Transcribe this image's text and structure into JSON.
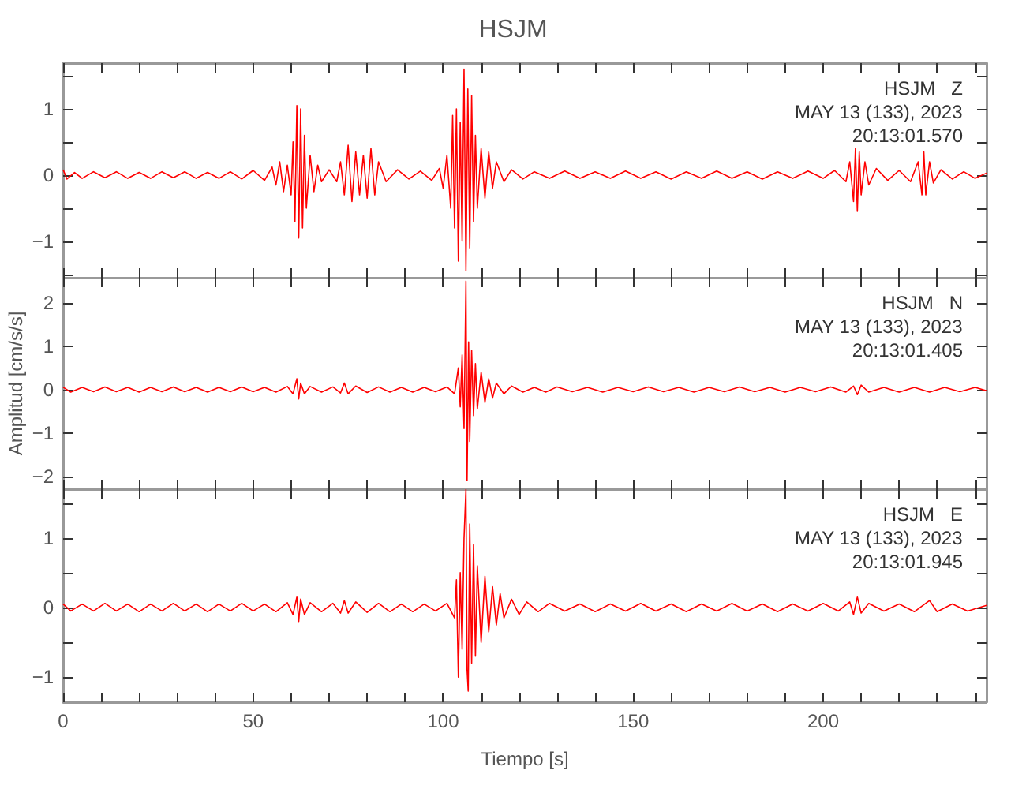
{
  "chart_data": [
    {
      "type": "line",
      "title": "HSJM",
      "annotations": [
        "HSJM   Z",
        "MAY 13 (133), 2023",
        "20:13:01.570"
      ],
      "xlim": [
        0,
        243
      ],
      "xticks": [
        0,
        {
          "value": 10,
          "label": null
        },
        {
          "value": 20,
          "label": null
        },
        {
          "value": 30,
          "label": null
        },
        {
          "value": 40,
          "label": null
        },
        50,
        {
          "value": 60,
          "label": null
        },
        {
          "value": 70,
          "label": null
        },
        {
          "value": 80,
          "label": null
        },
        {
          "value": 90,
          "label": null
        },
        100,
        {
          "value": 110,
          "label": null
        },
        {
          "value": 120,
          "label": null
        },
        {
          "value": 130,
          "label": null
        },
        {
          "value": 140,
          "label": null
        },
        150,
        {
          "value": 160,
          "label": null
        },
        {
          "value": 170,
          "label": null
        },
        {
          "value": 180,
          "label": null
        },
        {
          "value": 190,
          "label": null
        },
        200,
        {
          "value": 210,
          "label": null
        },
        {
          "value": 220,
          "label": null
        },
        {
          "value": 230,
          "label": null
        },
        {
          "value": 240,
          "label": null
        }
      ],
      "ylim": [
        -1.55,
        1.69
      ],
      "yticks": [
        {
          "value": -1.5,
          "label": null
        },
        -1,
        {
          "value": -0.5,
          "label": null
        },
        0,
        {
          "value": 0.5,
          "label": null
        },
        1,
        {
          "value": 1.5,
          "label": null
        }
      ],
      "tick_labels": "y",
      "series": [
        {
          "color": "#ff0000",
          "x": [
            0,
            1,
            3,
            5,
            8,
            11,
            14,
            17,
            20,
            23,
            26,
            29,
            32,
            35,
            38,
            41,
            44,
            47,
            50,
            53,
            55,
            56,
            57,
            58,
            59,
            60,
            60.5,
            61,
            61.5,
            62,
            62.5,
            63,
            63.5,
            64,
            65,
            66,
            67,
            68,
            70,
            72,
            73,
            74,
            75,
            76,
            77,
            78,
            79,
            80,
            81,
            82,
            83,
            85,
            88,
            91,
            94,
            97,
            99,
            100,
            101,
            102,
            102.5,
            103,
            103.5,
            104,
            104.5,
            105,
            105.5,
            106,
            106.5,
            107,
            107.5,
            108,
            108.5,
            109,
            110,
            111,
            112,
            113,
            114,
            116,
            118,
            121,
            124,
            128,
            132,
            136,
            140,
            144,
            148,
            152,
            156,
            160,
            164,
            168,
            172,
            176,
            180,
            184,
            188,
            192,
            196,
            200,
            203,
            206,
            207,
            208,
            208.5,
            209,
            209.5,
            210,
            211,
            212,
            214,
            217,
            220,
            223,
            225,
            226,
            226.5,
            227,
            228,
            229,
            231,
            234,
            237,
            240,
            243
          ],
          "values": [
            0.08,
            -0.06,
            0.04,
            -0.05,
            0.05,
            -0.04,
            0.05,
            -0.05,
            0.04,
            -0.05,
            0.05,
            -0.04,
            0.05,
            -0.05,
            0.04,
            -0.05,
            0.05,
            -0.06,
            0.07,
            -0.08,
            0.12,
            -0.15,
            0.2,
            -0.25,
            0.15,
            -0.3,
            0.5,
            -0.7,
            1.05,
            -0.95,
            1.0,
            -0.8,
            0.6,
            -0.5,
            0.3,
            -0.25,
            0.15,
            -0.1,
            0.08,
            -0.1,
            0.2,
            -0.3,
            0.45,
            -0.4,
            0.35,
            -0.3,
            0.3,
            -0.35,
            0.4,
            -0.3,
            0.2,
            -0.1,
            0.08,
            -0.06,
            0.06,
            -0.08,
            0.1,
            -0.2,
            0.3,
            -0.5,
            0.9,
            -0.8,
            1.0,
            -1.3,
            0.8,
            -1.0,
            1.6,
            -1.45,
            1.3,
            -1.1,
            1.2,
            -0.7,
            0.6,
            -0.5,
            0.4,
            -0.35,
            0.35,
            -0.2,
            0.2,
            -0.1,
            0.08,
            -0.06,
            0.05,
            -0.05,
            0.06,
            -0.05,
            0.05,
            -0.05,
            0.06,
            -0.05,
            0.05,
            -0.06,
            0.05,
            -0.05,
            0.06,
            -0.05,
            0.05,
            -0.06,
            0.05,
            -0.05,
            0.06,
            -0.05,
            0.07,
            -0.1,
            0.2,
            -0.4,
            0.4,
            -0.55,
            0.35,
            -0.3,
            0.2,
            -0.15,
            0.1,
            -0.08,
            0.07,
            -0.1,
            0.2,
            -0.3,
            0.35,
            -0.3,
            0.2,
            -0.12,
            0.08,
            -0.06,
            0.05,
            -0.05,
            0.03
          ]
        }
      ]
    },
    {
      "type": "line",
      "ylabel": "Amplitud [cm/s/s]",
      "annotations": [
        "HSJM   N",
        "MAY 13 (133), 2023",
        "20:13:01.405"
      ],
      "xlim": [
        0,
        243
      ],
      "xticks": [
        0,
        {
          "value": 10,
          "label": null
        },
        {
          "value": 20,
          "label": null
        },
        {
          "value": 30,
          "label": null
        },
        {
          "value": 40,
          "label": null
        },
        50,
        {
          "value": 60,
          "label": null
        },
        {
          "value": 70,
          "label": null
        },
        {
          "value": 80,
          "label": null
        },
        {
          "value": 90,
          "label": null
        },
        100,
        {
          "value": 110,
          "label": null
        },
        {
          "value": 120,
          "label": null
        },
        {
          "value": 130,
          "label": null
        },
        {
          "value": 140,
          "label": null
        },
        150,
        {
          "value": 160,
          "label": null
        },
        {
          "value": 170,
          "label": null
        },
        {
          "value": 180,
          "label": null
        },
        {
          "value": 190,
          "label": null
        },
        200,
        {
          "value": 210,
          "label": null
        },
        {
          "value": 220,
          "label": null
        },
        {
          "value": 230,
          "label": null
        },
        {
          "value": 240,
          "label": null
        }
      ],
      "ylim": [
        -2.3,
        2.58
      ],
      "yticks": [
        -2,
        -1,
        0,
        1,
        2
      ],
      "tick_labels": "y",
      "series": [
        {
          "color": "#ff0000",
          "x": [
            0,
            2,
            5,
            8,
            11,
            14,
            17,
            20,
            23,
            26,
            29,
            32,
            35,
            38,
            41,
            44,
            47,
            50,
            53,
            56,
            59,
            60.5,
            61.5,
            62,
            62.5,
            63.5,
            65,
            68,
            71,
            73,
            74,
            75,
            77,
            80,
            83,
            86,
            89,
            92,
            95,
            98,
            101,
            103,
            104,
            104.5,
            105,
            105.5,
            106,
            106.3,
            106.7,
            107,
            107.5,
            108,
            108.5,
            109,
            110,
            111,
            112,
            113,
            114,
            116,
            118,
            121,
            124,
            127,
            130,
            134,
            138,
            142,
            146,
            150,
            154,
            158,
            162,
            166,
            170,
            174,
            178,
            182,
            186,
            190,
            194,
            198,
            202,
            206,
            208,
            209,
            210,
            212,
            216,
            220,
            224,
            228,
            232,
            236,
            240,
            243
          ],
          "values": [
            0.05,
            -0.06,
            0.05,
            -0.05,
            0.06,
            -0.05,
            0.05,
            -0.06,
            0.05,
            -0.05,
            0.06,
            -0.05,
            0.05,
            -0.06,
            0.05,
            -0.05,
            0.06,
            -0.05,
            0.05,
            -0.06,
            0.07,
            -0.1,
            0.25,
            -0.22,
            0.15,
            -0.1,
            0.07,
            -0.06,
            0.06,
            -0.08,
            0.15,
            -0.1,
            0.08,
            -0.07,
            0.06,
            -0.06,
            0.05,
            -0.06,
            0.05,
            -0.05,
            0.06,
            -0.1,
            0.5,
            -0.4,
            0.8,
            -0.9,
            2.5,
            -2.1,
            1.1,
            -1.2,
            0.9,
            -0.6,
            0.6,
            -0.45,
            0.4,
            -0.3,
            0.25,
            -0.2,
            0.15,
            -0.1,
            0.08,
            -0.06,
            0.05,
            -0.06,
            0.06,
            -0.05,
            0.05,
            -0.06,
            0.05,
            -0.05,
            0.06,
            -0.05,
            0.05,
            -0.06,
            0.05,
            -0.05,
            0.06,
            -0.05,
            0.05,
            -0.06,
            0.05,
            -0.05,
            0.06,
            -0.06,
            0.08,
            -0.12,
            0.1,
            -0.06,
            0.05,
            -0.06,
            0.05,
            -0.06,
            0.05,
            -0.05,
            0.05,
            -0.03
          ]
        }
      ]
    },
    {
      "type": "line",
      "xlabel": "Tiempo [s]",
      "annotations": [
        "HSJM   E",
        "MAY 13 (133), 2023",
        "20:13:01.945"
      ],
      "xlim": [
        0,
        243
      ],
      "xticks": [
        0,
        {
          "value": 10,
          "label": null
        },
        {
          "value": 20,
          "label": null
        },
        {
          "value": 30,
          "label": null
        },
        {
          "value": 40,
          "label": null
        },
        50,
        {
          "value": 60,
          "label": null
        },
        {
          "value": 70,
          "label": null
        },
        {
          "value": 80,
          "label": null
        },
        {
          "value": 90,
          "label": null
        },
        100,
        {
          "value": 110,
          "label": null
        },
        {
          "value": 120,
          "label": null
        },
        {
          "value": 130,
          "label": null
        },
        {
          "value": 140,
          "label": null
        },
        150,
        {
          "value": 160,
          "label": null
        },
        {
          "value": 170,
          "label": null
        },
        {
          "value": 180,
          "label": null
        },
        {
          "value": 190,
          "label": null
        },
        200,
        {
          "value": 210,
          "label": null
        },
        {
          "value": 220,
          "label": null
        },
        {
          "value": 230,
          "label": null
        },
        {
          "value": 240,
          "label": null
        }
      ],
      "ylim": [
        -1.36,
        1.7
      ],
      "yticks": [
        -1,
        {
          "value": -0.5,
          "label": null
        },
        0,
        {
          "value": 0.5,
          "label": null
        },
        1,
        {
          "value": 1.5,
          "label": null
        }
      ],
      "series": [
        {
          "color": "#ff0000",
          "x": [
            0,
            2,
            5,
            8,
            11,
            14,
            17,
            20,
            23,
            26,
            29,
            32,
            35,
            38,
            41,
            44,
            47,
            50,
            53,
            56,
            59,
            60.5,
            61.5,
            62,
            62.5,
            63.5,
            65,
            68,
            71,
            73,
            74,
            75,
            77,
            80,
            83,
            86,
            89,
            92,
            95,
            98,
            101,
            103,
            103.5,
            104,
            104.5,
            105,
            105.5,
            106,
            106.3,
            106.6,
            107,
            107.5,
            108,
            108.5,
            109,
            110,
            111,
            112,
            113,
            114,
            115,
            116,
            118,
            120,
            122,
            125,
            128,
            132,
            136,
            140,
            144,
            148,
            152,
            156,
            160,
            164,
            168,
            172,
            176,
            180,
            184,
            188,
            192,
            196,
            200,
            204,
            207,
            208,
            209,
            210,
            212,
            216,
            220,
            224,
            227,
            228,
            230,
            234,
            238,
            243
          ],
          "values": [
            0.05,
            -0.05,
            0.05,
            -0.05,
            0.06,
            -0.05,
            0.05,
            -0.06,
            0.05,
            -0.05,
            0.06,
            -0.05,
            0.05,
            -0.06,
            0.05,
            -0.05,
            0.06,
            -0.05,
            0.05,
            -0.06,
            0.07,
            -0.1,
            0.15,
            -0.2,
            0.12,
            -0.1,
            0.07,
            -0.06,
            0.06,
            -0.08,
            0.1,
            -0.08,
            0.08,
            -0.07,
            0.06,
            -0.06,
            0.05,
            -0.06,
            0.05,
            -0.05,
            0.06,
            -0.15,
            0.4,
            -1.0,
            0.5,
            -0.6,
            1.0,
            1.7,
            -0.9,
            -1.2,
            1.2,
            -0.8,
            0.9,
            -0.7,
            0.6,
            -0.5,
            0.45,
            -0.35,
            0.3,
            -0.25,
            0.2,
            -0.15,
            0.12,
            -0.1,
            0.08,
            -0.06,
            0.06,
            -0.05,
            0.05,
            -0.06,
            0.05,
            -0.05,
            0.06,
            -0.05,
            0.05,
            -0.06,
            0.05,
            -0.05,
            0.06,
            -0.05,
            0.05,
            -0.06,
            0.05,
            -0.05,
            0.06,
            -0.05,
            0.08,
            -0.1,
            0.15,
            -0.08,
            0.06,
            -0.05,
            0.05,
            -0.06,
            0.06,
            0.1,
            -0.06,
            0.05,
            -0.05,
            0.03
          ]
        }
      ]
    }
  ]
}
